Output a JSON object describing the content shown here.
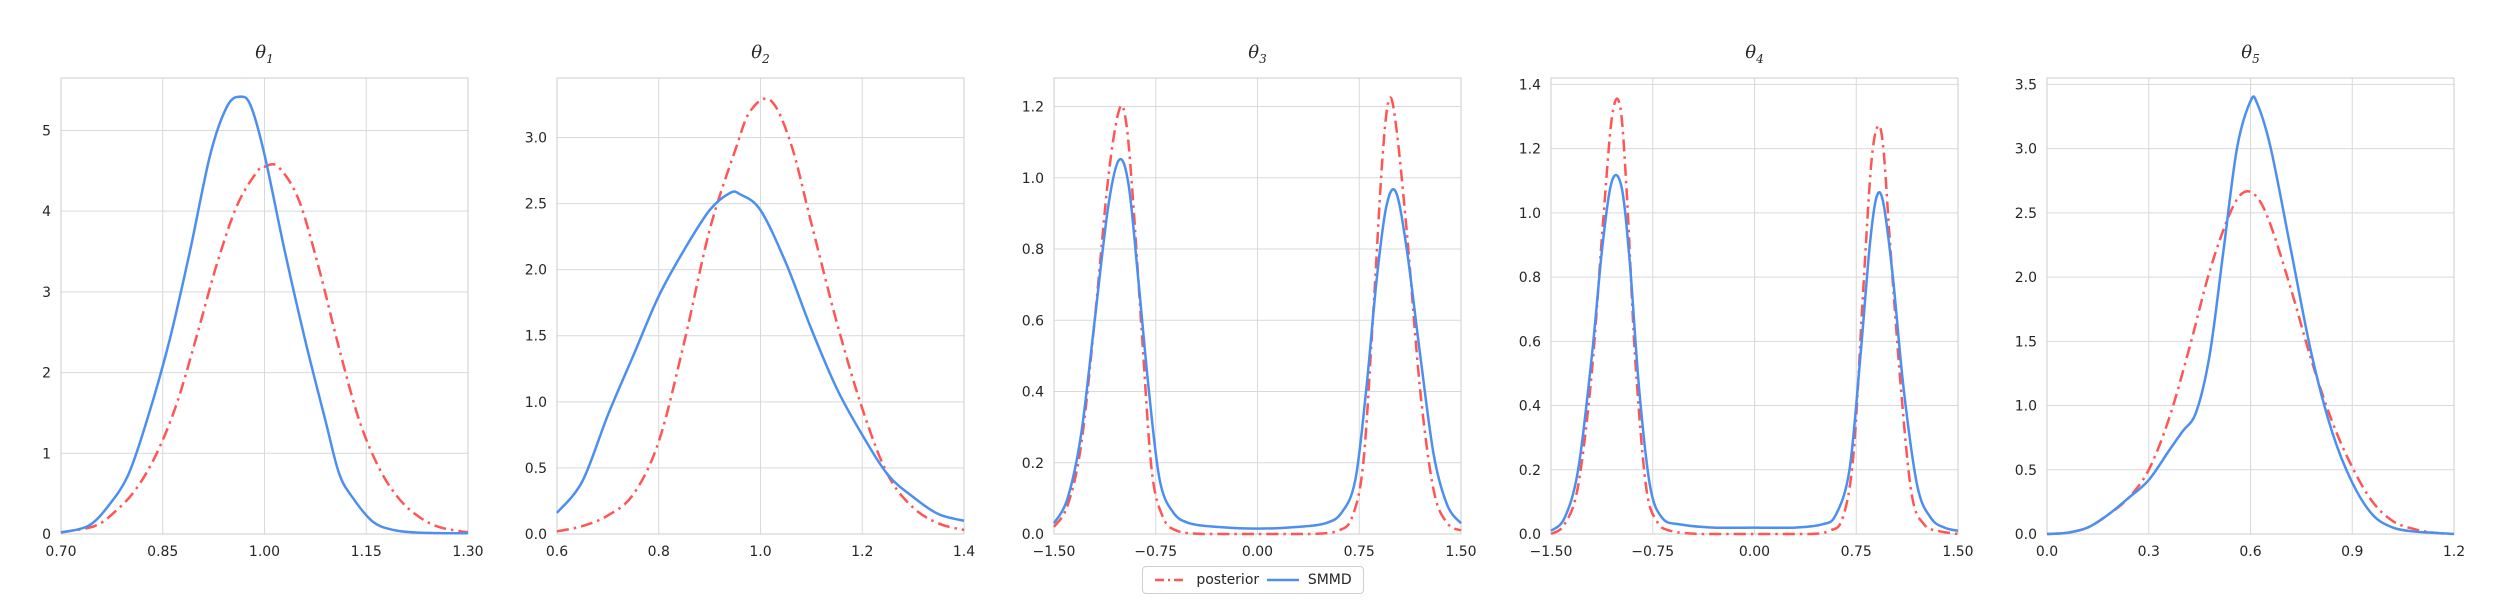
{
  "chart_data": [
    {
      "type": "line",
      "title_base": "θ",
      "title_sub": "1",
      "xlim": [
        0.7,
        1.3
      ],
      "ylim": [
        0,
        5.65
      ],
      "xticks": [
        0.7,
        0.85,
        1.0,
        1.15,
        1.3
      ],
      "xtick_labels": [
        "0.70",
        "0.85",
        "1.00",
        "1.15",
        "1.30"
      ],
      "yticks": [
        0,
        1,
        2,
        3,
        4,
        5
      ],
      "ytick_labels": [
        "0",
        "1",
        "2",
        "3",
        "4",
        "5"
      ],
      "series": [
        {
          "name": "posterior",
          "color": "#ff5555",
          "dash": "dashdot",
          "x": [
            0.7,
            0.75,
            0.78,
            0.81,
            0.84,
            0.87,
            0.9,
            0.93,
            0.96,
            0.99,
            1.0,
            1.02,
            1.05,
            1.08,
            1.11,
            1.14,
            1.17,
            1.2,
            1.23,
            1.26,
            1.3
          ],
          "y": [
            0.02,
            0.1,
            0.28,
            0.55,
            0.98,
            1.6,
            2.45,
            3.35,
            4.08,
            4.5,
            4.55,
            4.55,
            4.15,
            3.3,
            2.3,
            1.4,
            0.8,
            0.42,
            0.2,
            0.08,
            0.02
          ]
        },
        {
          "name": "SMMD",
          "color": "#4c8ff0",
          "dash": "solid",
          "x": [
            0.7,
            0.74,
            0.77,
            0.8,
            0.83,
            0.86,
            0.89,
            0.92,
            0.945,
            0.965,
            0.98,
            1.0,
            1.03,
            1.06,
            1.09,
            1.11,
            1.13,
            1.16,
            1.19,
            1.22,
            1.26,
            1.3
          ],
          "y": [
            0.02,
            0.1,
            0.35,
            0.75,
            1.5,
            2.4,
            3.5,
            4.7,
            5.3,
            5.42,
            5.3,
            4.7,
            3.5,
            2.4,
            1.4,
            0.75,
            0.45,
            0.15,
            0.05,
            0.02,
            0.01,
            0.01
          ]
        }
      ]
    },
    {
      "type": "line",
      "title_base": "θ",
      "title_sub": "2",
      "xlim": [
        0.6,
        1.4
      ],
      "ylim": [
        0,
        3.45
      ],
      "xticks": [
        0.6,
        0.8,
        1.0,
        1.2,
        1.4
      ],
      "xtick_labels": [
        "0.6",
        "0.8",
        "1.0",
        "1.2",
        "1.4"
      ],
      "yticks": [
        0,
        0.5,
        1.0,
        1.5,
        2.0,
        2.5,
        3.0
      ],
      "ytick_labels": [
        "0.0",
        "0.5",
        "1.0",
        "1.5",
        "2.0",
        "2.5",
        "3.0"
      ],
      "series": [
        {
          "name": "posterior",
          "color": "#ff5555",
          "dash": "dashdot",
          "x": [
            0.6,
            0.65,
            0.7,
            0.75,
            0.8,
            0.85,
            0.9,
            0.95,
            0.98,
            1.02,
            1.06,
            1.1,
            1.15,
            1.2,
            1.25,
            1.3,
            1.35,
            1.4
          ],
          "y": [
            0.02,
            0.06,
            0.14,
            0.3,
            0.7,
            1.45,
            2.3,
            2.9,
            3.2,
            3.28,
            2.95,
            2.35,
            1.6,
            0.95,
            0.45,
            0.2,
            0.08,
            0.03
          ]
        },
        {
          "name": "SMMD",
          "color": "#4c8ff0",
          "dash": "solid",
          "x": [
            0.6,
            0.65,
            0.7,
            0.75,
            0.8,
            0.85,
            0.9,
            0.94,
            0.96,
            1.0,
            1.05,
            1.1,
            1.15,
            1.2,
            1.25,
            1.3,
            1.35,
            1.4
          ],
          "y": [
            0.16,
            0.4,
            0.9,
            1.35,
            1.8,
            2.15,
            2.45,
            2.58,
            2.57,
            2.45,
            2.05,
            1.55,
            1.1,
            0.75,
            0.45,
            0.28,
            0.15,
            0.1
          ]
        }
      ]
    },
    {
      "type": "line",
      "title_base": "θ",
      "title_sub": "3",
      "xlim": [
        -1.5,
        1.5
      ],
      "ylim": [
        0,
        1.28
      ],
      "xticks": [
        -1.5,
        -0.75,
        0,
        0.75,
        1.5
      ],
      "xtick_labels": [
        "−1.50",
        "−0.75",
        "0.00",
        "0.75",
        "1.50"
      ],
      "yticks": [
        0,
        0.2,
        0.4,
        0.6,
        0.8,
        1.0,
        1.2
      ],
      "ytick_labels": [
        "0.0",
        "0.2",
        "0.4",
        "0.6",
        "0.8",
        "1.0",
        "1.2"
      ],
      "series": [
        {
          "name": "posterior",
          "color": "#ff5555",
          "dash": "dashdot",
          "x": [
            -1.5,
            -1.4,
            -1.3,
            -1.2,
            -1.1,
            -1.02,
            -0.97,
            -0.92,
            -0.85,
            -0.78,
            -0.7,
            -0.6,
            -0.4,
            0.0,
            0.4,
            0.6,
            0.7,
            0.78,
            0.85,
            0.92,
            0.97,
            1.02,
            1.1,
            1.2,
            1.3,
            1.4,
            1.5
          ],
          "y": [
            0.02,
            0.08,
            0.25,
            0.6,
            1.0,
            1.19,
            1.16,
            0.95,
            0.55,
            0.18,
            0.05,
            0.01,
            0.0,
            0.0,
            0.0,
            0.01,
            0.05,
            0.2,
            0.6,
            1.05,
            1.22,
            1.15,
            0.85,
            0.4,
            0.12,
            0.03,
            0.01
          ]
        },
        {
          "name": "SMMD",
          "color": "#4c8ff0",
          "dash": "solid",
          "x": [
            -1.5,
            -1.4,
            -1.3,
            -1.2,
            -1.1,
            -1.02,
            -0.95,
            -0.88,
            -0.8,
            -0.72,
            -0.62,
            -0.5,
            -0.3,
            0.0,
            0.3,
            0.5,
            0.62,
            0.72,
            0.8,
            0.88,
            0.95,
            1.02,
            1.1,
            1.2,
            1.3,
            1.4,
            1.5
          ],
          "y": [
            0.03,
            0.1,
            0.28,
            0.6,
            0.92,
            1.05,
            0.98,
            0.72,
            0.4,
            0.15,
            0.06,
            0.03,
            0.02,
            0.015,
            0.02,
            0.03,
            0.06,
            0.15,
            0.4,
            0.72,
            0.92,
            0.96,
            0.8,
            0.5,
            0.22,
            0.08,
            0.03
          ]
        }
      ]
    },
    {
      "type": "line",
      "title_base": "θ",
      "title_sub": "4",
      "xlim": [
        -1.5,
        1.5
      ],
      "ylim": [
        0,
        1.42
      ],
      "xticks": [
        -1.5,
        -0.75,
        0,
        0.75,
        1.5
      ],
      "xtick_labels": [
        "−1.50",
        "−0.75",
        "0.00",
        "0.75",
        "1.50"
      ],
      "yticks": [
        0,
        0.2,
        0.4,
        0.6,
        0.8,
        1.0,
        1.2,
        1.4
      ],
      "ytick_labels": [
        "0.0",
        "0.2",
        "0.4",
        "0.6",
        "0.8",
        "1.0",
        "1.2",
        "1.4"
      ],
      "series": [
        {
          "name": "posterior",
          "color": "#ff5555",
          "dash": "dashdot",
          "x": [
            -1.5,
            -1.4,
            -1.3,
            -1.2,
            -1.12,
            -1.05,
            -0.99,
            -0.94,
            -0.88,
            -0.8,
            -0.72,
            -0.62,
            -0.4,
            0.0,
            0.4,
            0.55,
            0.65,
            0.73,
            0.8,
            0.86,
            0.91,
            0.95,
            1.0,
            1.08,
            1.16,
            1.25,
            1.35,
            1.5
          ],
          "y": [
            0.0,
            0.03,
            0.15,
            0.5,
            0.95,
            1.3,
            1.33,
            1.05,
            0.55,
            0.15,
            0.04,
            0.01,
            0.0,
            0.0,
            0.0,
            0.01,
            0.05,
            0.25,
            0.75,
            1.15,
            1.27,
            1.2,
            0.9,
            0.45,
            0.12,
            0.03,
            0.01,
            0.0
          ]
        },
        {
          "name": "SMMD",
          "color": "#4c8ff0",
          "dash": "solid",
          "x": [
            -1.5,
            -1.4,
            -1.3,
            -1.2,
            -1.12,
            -1.05,
            -0.98,
            -0.92,
            -0.85,
            -0.77,
            -0.68,
            -0.55,
            -0.3,
            0.0,
            0.3,
            0.5,
            0.6,
            0.7,
            0.78,
            0.85,
            0.9,
            0.95,
            1.02,
            1.1,
            1.2,
            1.3,
            1.4,
            1.5
          ],
          "y": [
            0.01,
            0.05,
            0.2,
            0.55,
            0.9,
            1.1,
            1.08,
            0.85,
            0.45,
            0.15,
            0.05,
            0.03,
            0.02,
            0.02,
            0.02,
            0.03,
            0.06,
            0.2,
            0.55,
            0.9,
            1.05,
            1.03,
            0.8,
            0.45,
            0.15,
            0.05,
            0.02,
            0.01
          ]
        }
      ]
    },
    {
      "type": "line",
      "title_base": "θ",
      "title_sub": "5",
      "xlim": [
        0.0,
        1.2
      ],
      "ylim": [
        0,
        3.55
      ],
      "xticks": [
        0.0,
        0.3,
        0.6,
        0.9,
        1.2
      ],
      "xtick_labels": [
        "0.0",
        "0.3",
        "0.6",
        "0.9",
        "1.2"
      ],
      "yticks": [
        0,
        0.5,
        1.0,
        1.5,
        2.0,
        2.5,
        3.0,
        3.5
      ],
      "ytick_labels": [
        "0.0",
        "0.5",
        "1.0",
        "1.5",
        "2.0",
        "2.5",
        "3.0",
        "3.5"
      ],
      "series": [
        {
          "name": "posterior",
          "color": "#ff5555",
          "dash": "dashdot",
          "x": [
            0.0,
            0.06,
            0.12,
            0.18,
            0.24,
            0.3,
            0.36,
            0.42,
            0.48,
            0.54,
            0.58,
            0.62,
            0.66,
            0.72,
            0.78,
            0.84,
            0.9,
            0.96,
            1.02,
            1.08,
            1.14,
            1.2
          ],
          "y": [
            0.0,
            0.01,
            0.05,
            0.15,
            0.28,
            0.5,
            0.9,
            1.45,
            2.05,
            2.5,
            2.66,
            2.62,
            2.4,
            1.9,
            1.35,
            0.88,
            0.52,
            0.25,
            0.1,
            0.04,
            0.01,
            0.0
          ]
        },
        {
          "name": "SMMD",
          "color": "#4c8ff0",
          "dash": "solid",
          "x": [
            0.0,
            0.06,
            0.12,
            0.18,
            0.24,
            0.3,
            0.36,
            0.4,
            0.44,
            0.48,
            0.52,
            0.56,
            0.6,
            0.62,
            0.66,
            0.72,
            0.78,
            0.84,
            0.9,
            0.96,
            1.02,
            1.08,
            1.14,
            1.2
          ],
          "y": [
            0.0,
            0.01,
            0.05,
            0.15,
            0.28,
            0.42,
            0.65,
            0.8,
            0.95,
            1.4,
            2.2,
            3.0,
            3.37,
            3.35,
            3.0,
            2.2,
            1.4,
            0.8,
            0.4,
            0.15,
            0.05,
            0.02,
            0.01,
            0.0
          ]
        }
      ]
    }
  ],
  "legend": {
    "items": [
      {
        "label": "posterior",
        "color": "#ff5555",
        "dash": "dashdot"
      },
      {
        "label": "SMMD",
        "color": "#4c8ff0",
        "dash": "solid"
      }
    ]
  }
}
